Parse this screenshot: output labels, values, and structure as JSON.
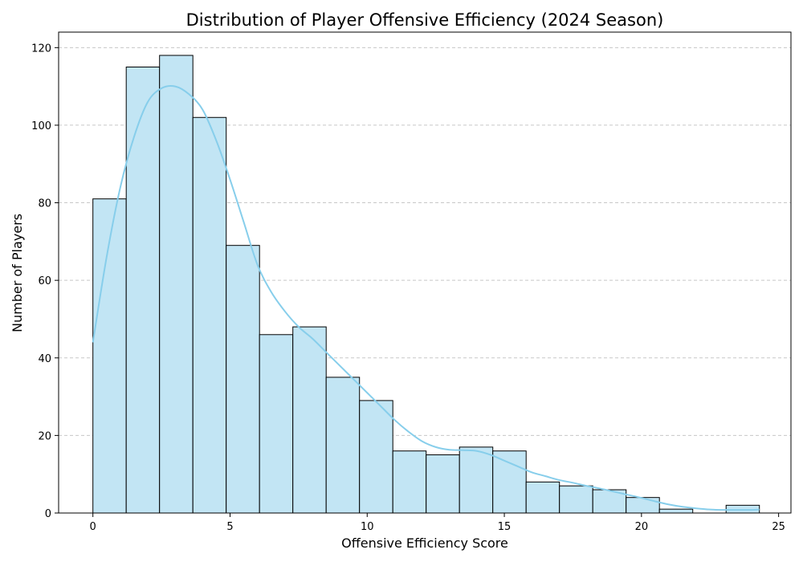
{
  "chart_data": {
    "type": "bar",
    "subtype": "histogram_with_kde",
    "title": "Distribution of Player Offensive Efficiency (2024 Season)",
    "xlabel": "Offensive Efficiency Score",
    "ylabel": "Number of Players",
    "xlim": [
      -1.25,
      25.45
    ],
    "ylim": [
      0,
      124
    ],
    "xticks": [
      0,
      5,
      10,
      15,
      20,
      25
    ],
    "yticks": [
      0,
      20,
      40,
      60,
      80,
      100,
      120
    ],
    "grid": "y-dashed",
    "bin_start": 0,
    "bin_width": 1.215,
    "counts": [
      81,
      115,
      118,
      102,
      69,
      46,
      48,
      35,
      29,
      16,
      15,
      17,
      16,
      8,
      7,
      6,
      4,
      1,
      0,
      2
    ],
    "kde": {
      "x": [
        0,
        0.5,
        1,
        1.5,
        2,
        2.5,
        3,
        3.5,
        4,
        4.5,
        5,
        5.5,
        6,
        6.5,
        7,
        7.5,
        8,
        8.5,
        9,
        9.5,
        10,
        10.5,
        11,
        11.5,
        12,
        12.5,
        13,
        13.5,
        14,
        14.5,
        15,
        15.5,
        16,
        16.5,
        17,
        17.5,
        18,
        18.5,
        19,
        19.5,
        20,
        20.5,
        21,
        21.5,
        22,
        22.5,
        23,
        23.5,
        24,
        24.3
      ],
      "y": [
        44,
        66,
        84,
        97,
        106,
        109.5,
        110,
        108,
        104,
        96,
        86,
        75,
        64,
        57,
        52,
        48,
        45,
        41.5,
        38,
        34.5,
        31,
        27.5,
        24,
        21,
        18.5,
        17,
        16.3,
        16.2,
        16,
        15,
        13.5,
        12,
        10.5,
        9.5,
        8.5,
        7.8,
        7,
        6.3,
        5.5,
        4.7,
        3.9,
        3,
        2.2,
        1.6,
        1.2,
        0.9,
        0.8,
        0.8,
        0.8,
        0.9
      ]
    },
    "colors": {
      "bar_fill": "#c2e5f4",
      "bar_edge": "#000000",
      "kde_line": "#87ceeb",
      "grid": "#c8c8c8"
    }
  }
}
